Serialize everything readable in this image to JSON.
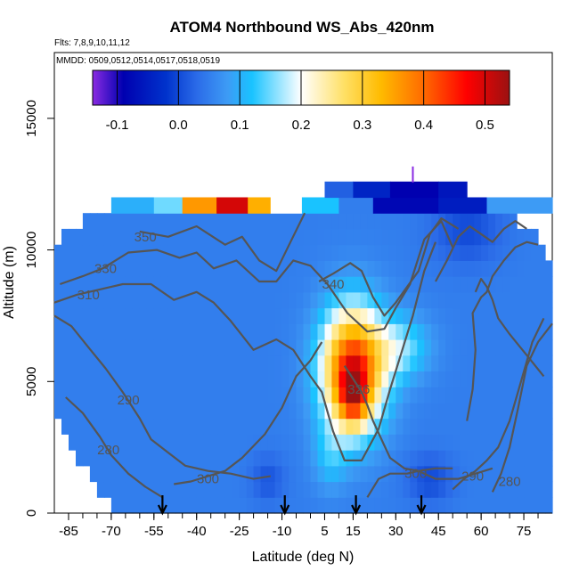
{
  "chart_data": {
    "type": "heatmap",
    "title": "ATOM4 Northbound WS_Abs_420nm",
    "subtitle_flights": "Flts: 7,8,9,10,11,12",
    "subtitle_dates": "MMDD: 0509,0512,0514,0517,0518,0519",
    "xlabel": "Latitude (deg N)",
    "ylabel": "Altitude (m)",
    "xlim": [
      -90,
      85
    ],
    "ylim": [
      0,
      17500
    ],
    "x_ticks": [
      -85,
      -70,
      -55,
      -40,
      -25,
      -10,
      5,
      15,
      30,
      45,
      60,
      75
    ],
    "x_tick_labels": [
      "-85",
      "-70",
      "-55",
      "-40",
      "-25",
      "-10",
      "5",
      "15",
      "30",
      "45",
      "60",
      "75"
    ],
    "y_ticks": [
      0,
      5000,
      10000,
      15000
    ],
    "y_tick_labels": [
      "0",
      "5000",
      "10000",
      "15000"
    ],
    "colorbar": {
      "range": [
        -0.14,
        0.54
      ],
      "ticks": [
        -0.1,
        0.0,
        0.1,
        0.2,
        0.3,
        0.4,
        0.5
      ],
      "tick_labels": [
        "-0.1",
        "0.0",
        "0.1",
        "0.2",
        "0.3",
        "0.4",
        "0.5"
      ],
      "color_stops": [
        {
          "v": -0.14,
          "c": "#8a2be2"
        },
        {
          "v": -0.09,
          "c": "#0000b0"
        },
        {
          "v": -0.02,
          "c": "#0033cc"
        },
        {
          "v": 0.03,
          "c": "#2b6be8"
        },
        {
          "v": 0.08,
          "c": "#3d9bf5"
        },
        {
          "v": 0.12,
          "c": "#19c3ff"
        },
        {
          "v": 0.2,
          "c": "#ffffff"
        },
        {
          "v": 0.27,
          "c": "#ffe066"
        },
        {
          "v": 0.33,
          "c": "#ffbb00"
        },
        {
          "v": 0.4,
          "c": "#ff6a00"
        },
        {
          "v": 0.47,
          "c": "#ff0000"
        },
        {
          "v": 0.54,
          "c": "#9b1111"
        }
      ]
    },
    "field_background_value": 0.05,
    "features": [
      {
        "lat": 15,
        "alt": 5500,
        "slat": 11,
        "salt": 2300,
        "amp": 0.4
      },
      {
        "lat": 15,
        "alt": 4500,
        "slat": 5,
        "salt": 1100,
        "amp": 0.18
      },
      {
        "lat": 32,
        "alt": 6300,
        "slat": 10,
        "salt": 1200,
        "amp": 0.1
      },
      {
        "lat": 7,
        "alt": 2200,
        "slat": 6,
        "salt": 1300,
        "amp": 0.06
      },
      {
        "lat": 42,
        "alt": 1300,
        "slat": 8,
        "salt": 900,
        "amp": -0.05
      },
      {
        "lat": -15,
        "alt": 1300,
        "slat": 6,
        "salt": 900,
        "amp": -0.04
      },
      {
        "lat": 55,
        "alt": 10800,
        "slat": 12,
        "salt": 1300,
        "amp": -0.05
      }
    ],
    "upper_band": {
      "alt_range": [
        11400,
        12000
      ],
      "lat_range": [
        -70,
        85
      ],
      "segments": [
        {
          "lat": [
            -70,
            -55
          ],
          "v": 0.1
        },
        {
          "lat": [
            -55,
            -45
          ],
          "v": 0.15
        },
        {
          "lat": [
            -45,
            -33
          ],
          "v": 0.36
        },
        {
          "lat": [
            -33,
            -22
          ],
          "v": 0.5
        },
        {
          "lat": [
            -22,
            -14
          ],
          "v": 0.34
        },
        {
          "lat": [
            -14,
            -3
          ],
          "v": 0.2
        },
        {
          "lat": [
            -3,
            10
          ],
          "v": 0.12
        },
        {
          "lat": [
            10,
            22
          ],
          "v": 0.05
        },
        {
          "lat": [
            22,
            45
          ],
          "v": -0.08
        },
        {
          "lat": [
            45,
            62
          ],
          "v": -0.05
        },
        {
          "lat": [
            62,
            85
          ],
          "v": 0.08
        }
      ]
    },
    "top_band": {
      "alt_range": [
        12000,
        12600
      ],
      "lat_range": [
        5,
        55
      ],
      "segments": [
        {
          "lat": [
            5,
            15
          ],
          "v": 0.02
        },
        {
          "lat": [
            15,
            28
          ],
          "v": -0.04
        },
        {
          "lat": [
            28,
            45
          ],
          "v": -0.09
        },
        {
          "lat": [
            45,
            55
          ],
          "v": -0.06
        }
      ]
    },
    "data_top_by_lat": [
      {
        "lat": -90,
        "alt": 10400
      },
      {
        "lat": -75,
        "alt": 11400
      },
      {
        "lat": -60,
        "alt": 11400
      },
      {
        "lat": -40,
        "alt": 11400
      },
      {
        "lat": -20,
        "alt": 11400
      },
      {
        "lat": 0,
        "alt": 11400
      },
      {
        "lat": 10,
        "alt": 12600
      },
      {
        "lat": 30,
        "alt": 12600
      },
      {
        "lat": 55,
        "alt": 12000
      },
      {
        "lat": 70,
        "alt": 11400
      },
      {
        "lat": 80,
        "alt": 10400
      },
      {
        "lat": 85,
        "alt": 9200
      }
    ],
    "data_bottom_by_lat": [
      {
        "lat": -90,
        "alt": 3800
      },
      {
        "lat": -85,
        "alt": 2800
      },
      {
        "lat": -80,
        "alt": 1800
      },
      {
        "lat": -75,
        "alt": 900
      },
      {
        "lat": -70,
        "alt": 200
      },
      {
        "lat": 85,
        "alt": 200
      }
    ],
    "contours": [
      {
        "label": "350",
        "label_at": [
          -58,
          10500
        ],
        "points": [
          [
            -60,
            10700
          ],
          [
            -50,
            10500
          ],
          [
            -40,
            10900
          ],
          [
            -30,
            10200
          ],
          [
            -24,
            10500
          ],
          [
            -18,
            9600
          ],
          [
            -12,
            9200
          ],
          [
            -7,
            10300
          ],
          [
            -2,
            11400
          ]
        ]
      },
      {
        "label": "330",
        "label_at": [
          -72,
          9300
        ],
        "points": [
          [
            -88,
            8700
          ],
          [
            -80,
            9000
          ],
          [
            -73,
            9300
          ],
          [
            -64,
            9900
          ],
          [
            -54,
            10000
          ],
          [
            -46,
            9700
          ],
          [
            -40,
            9900
          ],
          [
            -34,
            9300
          ],
          [
            -26,
            9600
          ],
          [
            -18,
            8800
          ],
          [
            -12,
            8800
          ],
          [
            -6,
            9600
          ],
          [
            0,
            9400
          ],
          [
            6,
            8700
          ],
          [
            13,
            7600
          ],
          [
            20,
            6900
          ],
          [
            26,
            7000
          ],
          [
            30,
            7800
          ],
          [
            35,
            8700
          ],
          [
            40,
            10400
          ],
          [
            46,
            11100
          ],
          [
            50,
            10100
          ]
        ]
      },
      {
        "label": "310",
        "label_at": [
          -78,
          8300
        ],
        "points": [
          [
            -90,
            8000
          ],
          [
            -82,
            8300
          ],
          [
            -74,
            8500
          ],
          [
            -66,
            8700
          ],
          [
            -56,
            8700
          ],
          [
            -48,
            8100
          ],
          [
            -40,
            8400
          ],
          [
            -34,
            8000
          ],
          [
            -28,
            7300
          ],
          [
            -20,
            6200
          ],
          [
            -12,
            6600
          ],
          [
            -6,
            6200
          ],
          [
            0,
            5200
          ],
          [
            4,
            4600
          ],
          [
            8,
            3100
          ],
          [
            12,
            2000
          ],
          [
            18,
            2000
          ],
          [
            24,
            3200
          ],
          [
            28,
            4700
          ],
          [
            32,
            6100
          ],
          [
            36,
            7500
          ],
          [
            40,
            9200
          ],
          [
            44,
            10300
          ]
        ]
      },
      {
        "label": "340",
        "label_at": [
          8,
          8700
        ],
        "points": [
          [
            3,
            8800
          ],
          [
            8,
            9100
          ],
          [
            14,
            9500
          ],
          [
            18,
            9200
          ],
          [
            22,
            8200
          ],
          [
            26,
            7500
          ],
          [
            30,
            8000
          ],
          [
            34,
            8600
          ],
          [
            38,
            9200
          ],
          [
            42,
            10600
          ],
          [
            46,
            11200
          ],
          [
            52,
            10800
          ]
        ]
      },
      {
        "label": "290",
        "label_at": [
          -64,
          4300
        ],
        "points": [
          [
            -90,
            7500
          ],
          [
            -84,
            7100
          ],
          [
            -78,
            6300
          ],
          [
            -72,
            5500
          ],
          [
            -66,
            4600
          ],
          [
            -60,
            3600
          ],
          [
            -56,
            2800
          ],
          [
            -50,
            2300
          ],
          [
            -44,
            1800
          ],
          [
            -36,
            1600
          ],
          [
            -28,
            1500
          ],
          [
            -20,
            1300
          ],
          [
            -14,
            1400
          ]
        ]
      },
      {
        "label": "280",
        "label_at": [
          -71,
          2400
        ],
        "points": [
          [
            -86,
            4400
          ],
          [
            -80,
            3800
          ],
          [
            -74,
            2900
          ],
          [
            -70,
            2200
          ],
          [
            -64,
            1500
          ],
          [
            -58,
            1000
          ],
          [
            -52,
            600
          ]
        ]
      },
      {
        "label": "300",
        "label_at": [
          -36,
          1300
        ],
        "points": [
          [
            -48,
            1100
          ],
          [
            -42,
            1200
          ],
          [
            -36,
            1400
          ],
          [
            -30,
            1600
          ],
          [
            -24,
            2100
          ],
          [
            -16,
            3000
          ],
          [
            -10,
            4000
          ],
          [
            -5,
            5200
          ],
          [
            0,
            5800
          ],
          [
            4,
            6500
          ]
        ]
      },
      {
        "label": "326",
        "label_at": [
          17,
          4700
        ],
        "points": [
          [
            12,
            5600
          ],
          [
            15,
            5100
          ],
          [
            18,
            4600
          ],
          [
            20,
            4100
          ],
          [
            22,
            3500
          ],
          [
            25,
            2800
          ],
          [
            28,
            2100
          ],
          [
            33,
            1700
          ],
          [
            38,
            1600
          ],
          [
            44,
            1300
          ],
          [
            52,
            1300
          ],
          [
            58,
            1500
          ],
          [
            64,
            1700
          ]
        ]
      },
      {
        "label": "300",
        "label_at": [
          37,
          1500
        ],
        "points": [
          [
            20,
            600
          ],
          [
            24,
            1300
          ],
          [
            28,
            1500
          ],
          [
            34,
            1500
          ],
          [
            38,
            1600
          ],
          [
            44,
            1700
          ],
          [
            50,
            1700
          ]
        ]
      },
      {
        "label": "290",
        "label_at": [
          57,
          1400
        ],
        "points": [
          [
            50,
            900
          ],
          [
            54,
            1300
          ],
          [
            58,
            1600
          ],
          [
            62,
            2000
          ],
          [
            66,
            2500
          ],
          [
            70,
            3500
          ],
          [
            74,
            5000
          ],
          [
            78,
            6500
          ],
          [
            82,
            7400
          ]
        ]
      },
      {
        "label": "280",
        "label_at": [
          70,
          1200
        ],
        "points": [
          [
            64,
            800
          ],
          [
            67,
            1500
          ],
          [
            70,
            2500
          ],
          [
            73,
            4000
          ],
          [
            76,
            5600
          ],
          [
            80,
            6500
          ],
          [
            85,
            7200
          ]
        ]
      },
      {
        "label": "",
        "label_at": null,
        "points": [
          [
            55,
            3500
          ],
          [
            57,
            4700
          ],
          [
            58,
            6200
          ],
          [
            57,
            7600
          ],
          [
            60,
            8200
          ],
          [
            62,
            8400
          ],
          [
            64,
            9000
          ],
          [
            68,
            9600
          ],
          [
            72,
            10100
          ],
          [
            76,
            10300
          ],
          [
            80,
            10200
          ]
        ]
      },
      {
        "label": "",
        "label_at": null,
        "points": [
          [
            44,
            8800
          ],
          [
            48,
            9600
          ],
          [
            52,
            10500
          ],
          [
            56,
            10900
          ],
          [
            60,
            10600
          ],
          [
            64,
            10300
          ],
          [
            68,
            10800
          ],
          [
            72,
            11100
          ],
          [
            76,
            10800
          ]
        ]
      },
      {
        "label": "",
        "label_at": null,
        "points": [
          [
            58,
            8400
          ],
          [
            60,
            8900
          ],
          [
            62,
            8600
          ],
          [
            64,
            8100
          ],
          [
            66,
            7400
          ],
          [
            70,
            6800
          ],
          [
            76,
            6000
          ],
          [
            82,
            5200
          ]
        ]
      }
    ],
    "markers": {
      "flight_track_tick": {
        "lat": 36,
        "alt": 12900
      },
      "arrows_lat": [
        -52,
        -9,
        16,
        39
      ]
    }
  }
}
